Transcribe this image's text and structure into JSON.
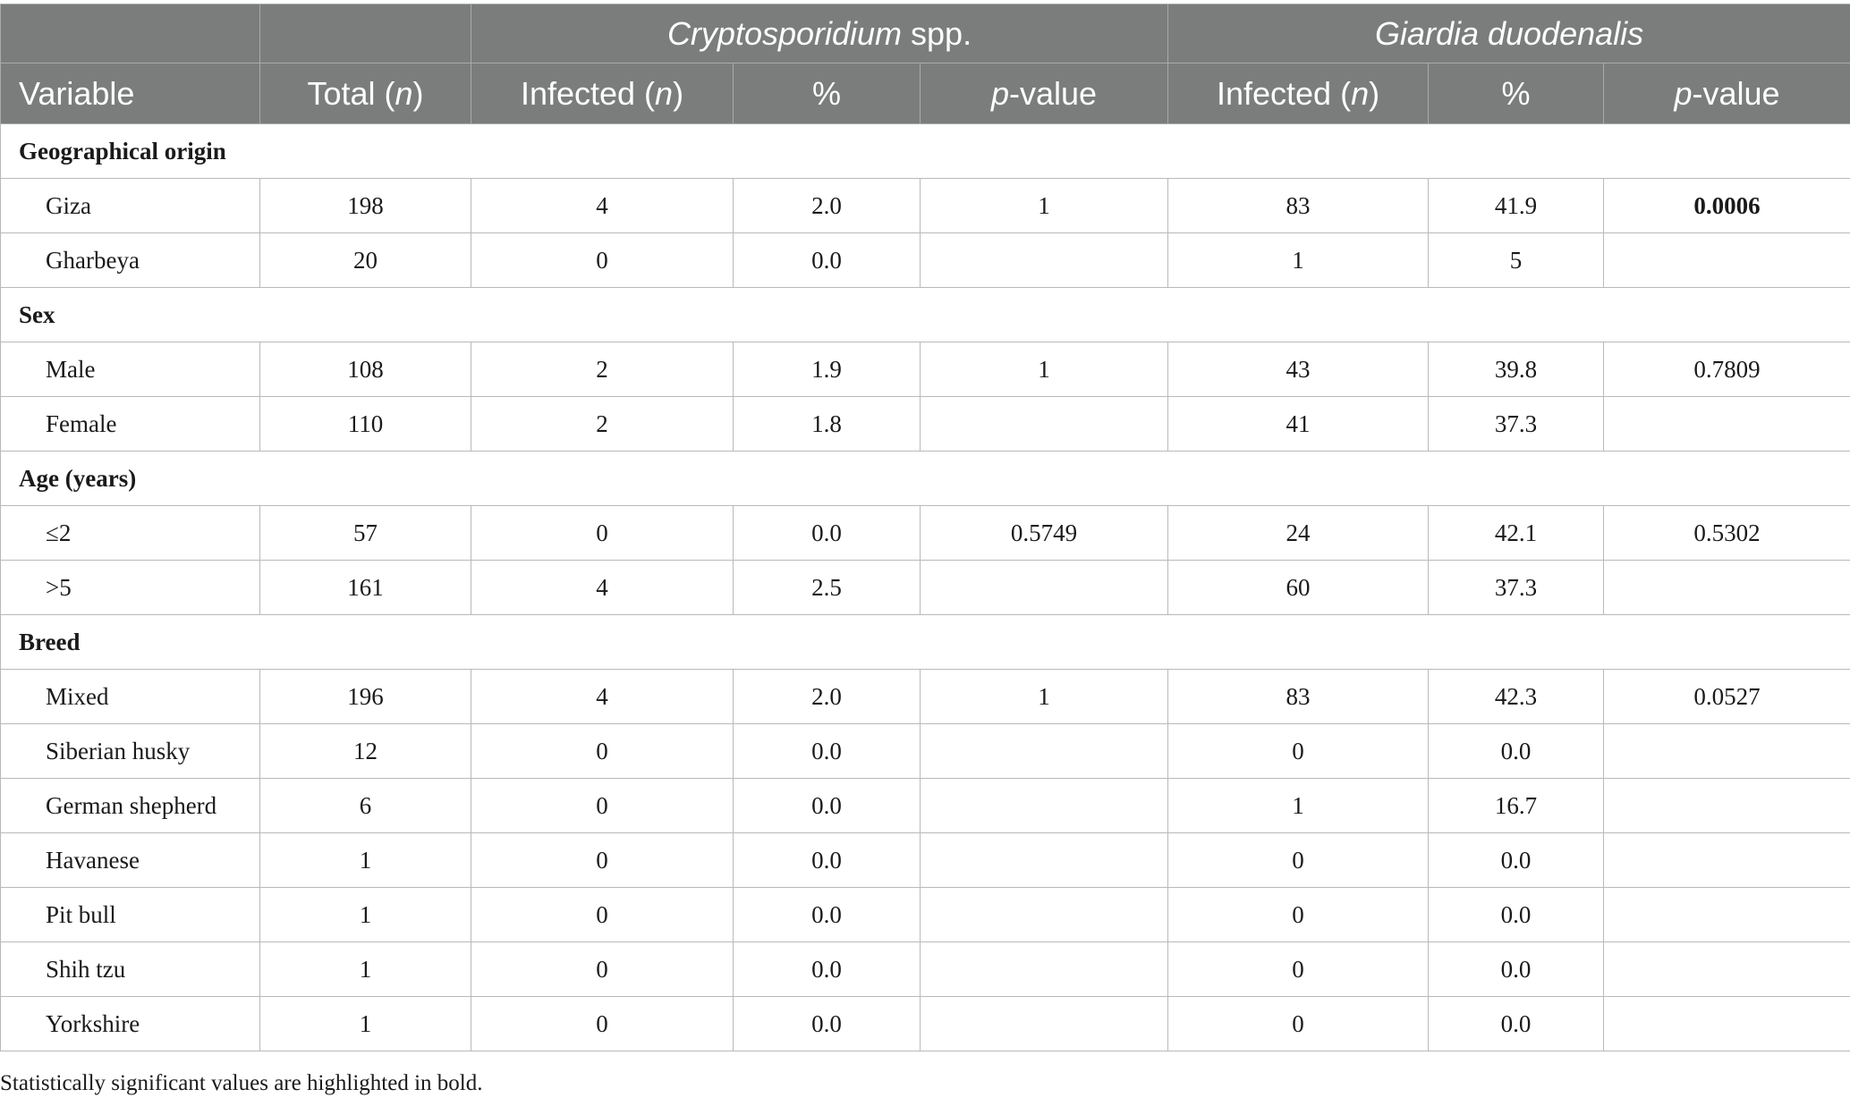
{
  "header": {
    "groups": {
      "crypto": {
        "name": "Cryptosporidium",
        "suffix": " spp."
      },
      "giardia": {
        "name": "Giardia duodenalis"
      }
    },
    "columns": {
      "variable": "Variable",
      "total_prefix": "Total (",
      "total_italic": "n",
      "total_suffix": ")",
      "infected_prefix": "Infected (",
      "infected_italic": "n",
      "infected_suffix": ")",
      "percent": "%",
      "p_italic": "p",
      "p_suffix": "-value"
    }
  },
  "sections": [
    {
      "title": "Geographical origin",
      "rows": [
        {
          "variable": "Giza",
          "total": "198",
          "c_inf": "4",
          "c_pct": "2.0",
          "c_p": "1",
          "g_inf": "83",
          "g_pct": "41.9",
          "g_p": "0.0006",
          "g_p_bold": true
        },
        {
          "variable": "Gharbeya",
          "total": "20",
          "c_inf": "0",
          "c_pct": "0.0",
          "c_p": "",
          "g_inf": "1",
          "g_pct": "5",
          "g_p": ""
        }
      ]
    },
    {
      "title": "Sex",
      "rows": [
        {
          "variable": "Male",
          "total": "108",
          "c_inf": "2",
          "c_pct": "1.9",
          "c_p": "1",
          "g_inf": "43",
          "g_pct": "39.8",
          "g_p": "0.7809"
        },
        {
          "variable": "Female",
          "total": "110",
          "c_inf": "2",
          "c_pct": "1.8",
          "c_p": "",
          "g_inf": "41",
          "g_pct": "37.3",
          "g_p": ""
        }
      ]
    },
    {
      "title": "Age (years)",
      "rows": [
        {
          "variable": "≤2",
          "total": "57",
          "c_inf": "0",
          "c_pct": "0.0",
          "c_p": "0.5749",
          "g_inf": "24",
          "g_pct": "42.1",
          "g_p": "0.5302"
        },
        {
          "variable": ">5",
          "total": "161",
          "c_inf": "4",
          "c_pct": "2.5",
          "c_p": "",
          "g_inf": "60",
          "g_pct": "37.3",
          "g_p": ""
        }
      ]
    },
    {
      "title": "Breed",
      "rows": [
        {
          "variable": "Mixed",
          "total": "196",
          "c_inf": "4",
          "c_pct": "2.0",
          "c_p": "1",
          "g_inf": "83",
          "g_pct": "42.3",
          "g_p": "0.0527"
        },
        {
          "variable": "Siberian husky",
          "total": "12",
          "c_inf": "0",
          "c_pct": "0.0",
          "c_p": "",
          "g_inf": "0",
          "g_pct": "0.0",
          "g_p": ""
        },
        {
          "variable": "German shepherd",
          "total": "6",
          "c_inf": "0",
          "c_pct": "0.0",
          "c_p": "",
          "g_inf": "1",
          "g_pct": "16.7",
          "g_p": ""
        },
        {
          "variable": "Havanese",
          "total": "1",
          "c_inf": "0",
          "c_pct": "0.0",
          "c_p": "",
          "g_inf": "0",
          "g_pct": "0.0",
          "g_p": ""
        },
        {
          "variable": "Pit bull",
          "total": "1",
          "c_inf": "0",
          "c_pct": "0.0",
          "c_p": "",
          "g_inf": "0",
          "g_pct": "0.0",
          "g_p": ""
        },
        {
          "variable": "Shih tzu",
          "total": "1",
          "c_inf": "0",
          "c_pct": "0.0",
          "c_p": "",
          "g_inf": "0",
          "g_pct": "0.0",
          "g_p": ""
        },
        {
          "variable": "Yorkshire",
          "total": "1",
          "c_inf": "0",
          "c_pct": "0.0",
          "c_p": "",
          "g_inf": "0",
          "g_pct": "0.0",
          "g_p": ""
        }
      ]
    }
  ],
  "footnote": "Statistically significant values are highlighted in bold."
}
